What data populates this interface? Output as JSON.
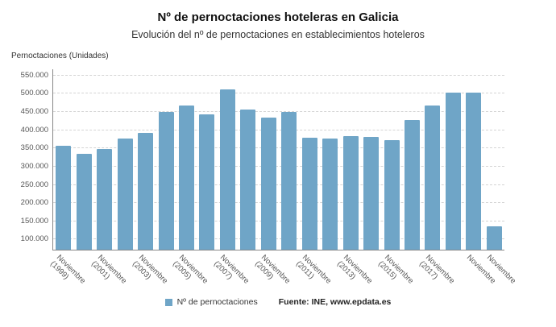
{
  "header": {
    "title": "Nº de pernoctaciones hoteleras en Galicia",
    "subtitle": "Evolución del nº de pernoctaciones en establecimientos hoteleros"
  },
  "y_axis": {
    "unit_label": "Pernoctaciones (Unidades)"
  },
  "legend": {
    "label": "Nº de pernoctaciones",
    "source": "Fuente: INE, www.epdata.es"
  },
  "chart_data": {
    "type": "bar",
    "title": "Nº de pernoctaciones hoteleras en Galicia",
    "subtitle": "Evolución del nº de pernoctaciones en establecimientos hoteleros",
    "ylabel": "Pernoctaciones (Unidades)",
    "ylim": [
      100000,
      550000
    ],
    "ytick_step": 50000,
    "grid": true,
    "legend_position": "bottom",
    "bar_color": "#6fa5c7",
    "series": [
      {
        "name": "Nº de pernoctaciones",
        "values": [
          355000,
          333000,
          347000,
          375000,
          391000,
          447000,
          466000,
          442000,
          510000,
          455000,
          432000,
          447000,
          378000,
          375000,
          381000,
          379000,
          370000,
          425000,
          466000,
          500000,
          500000,
          135000
        ]
      }
    ],
    "x_tick_labels": [
      {
        "bar_index": 0,
        "line1": "Noviembre",
        "line2": "(1999)"
      },
      {
        "bar_index": 2,
        "line1": "Noviembre",
        "line2": "(2001)"
      },
      {
        "bar_index": 4,
        "line1": "Noviembre",
        "line2": "(2003)"
      },
      {
        "bar_index": 6,
        "line1": "Noviembre",
        "line2": "(2005)"
      },
      {
        "bar_index": 8,
        "line1": "Noviembre",
        "line2": "(2007)"
      },
      {
        "bar_index": 10,
        "line1": "Noviembre",
        "line2": "(2009)"
      },
      {
        "bar_index": 12,
        "line1": "Noviembre",
        "line2": "(2011)"
      },
      {
        "bar_index": 14,
        "line1": "Noviembre",
        "line2": "(2013)"
      },
      {
        "bar_index": 16,
        "line1": "Noviembre",
        "line2": "(2015)"
      },
      {
        "bar_index": 18,
        "line1": "Noviembre",
        "line2": "(2017)"
      },
      {
        "bar_index": 20,
        "line1": "Noviembre",
        "line2": ""
      },
      {
        "bar_index": 21,
        "line1": "Noviembre",
        "line2": ""
      }
    ]
  }
}
